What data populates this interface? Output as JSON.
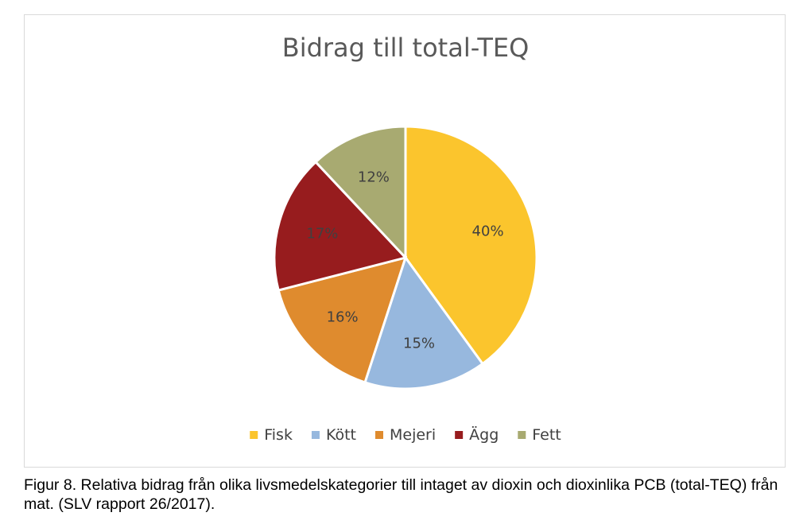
{
  "chart_data": {
    "type": "pie",
    "title": "Bidrag till total-TEQ",
    "categories": [
      "Fisk",
      "Kött",
      "Mejeri",
      "Ägg",
      "Fett"
    ],
    "values": [
      40,
      15,
      16,
      17,
      12
    ],
    "labels": [
      "40%",
      "15%",
      "16%",
      "17%",
      "12%"
    ],
    "colors": [
      "#FBC52D",
      "#97B8DE",
      "#DF8B2E",
      "#971C1E",
      "#A8AA71"
    ],
    "legend_position": "bottom"
  },
  "caption": "Figur 8. Relativa bidrag från olika livsmedelskategorier till intaget av dioxin och dioxinlika PCB (total-TEQ) från mat. (SLV rapport 26/2017)."
}
